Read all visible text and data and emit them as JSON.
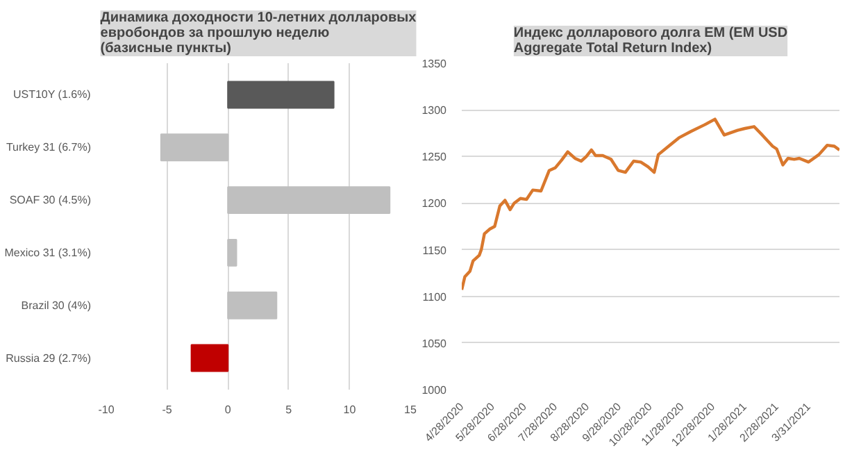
{
  "chart_data": [
    {
      "type": "bar",
      "orientation": "horizontal",
      "title": "Динамика доходности 10-летних долларовых\nевробондов за прошлую неделю\n(базисные пункты)",
      "categories": [
        "UST10Y (1.6%)",
        "Turkey 31 (6.7%)",
        "SOAF 30 (4.5%)",
        "Mexico 31 (3.1%)",
        "Brazil 30 (4%)",
        "Russia 29 (2.7%)"
      ],
      "values": [
        8.7,
        -5.5,
        13.3,
        0.7,
        4.0,
        -3.0
      ],
      "colors": [
        "#595959",
        "#bfbfbf",
        "#bfbfbf",
        "#bfbfbf",
        "#bfbfbf",
        "#c00000"
      ],
      "xlim": [
        -10,
        15
      ],
      "xticks": [
        -10,
        -5,
        0,
        5,
        10,
        15
      ],
      "grid": "x"
    },
    {
      "type": "line",
      "title": "Индекс долларового долга EM (EM USD\nAggregate Total Return Index)",
      "x": [
        "2020-04-28",
        "2020-05-01",
        "2020-05-06",
        "2020-05-09",
        "2020-05-15",
        "2020-05-17",
        "2020-05-20",
        "2020-05-25",
        "2020-05-30",
        "2020-06-04",
        "2020-06-09",
        "2020-06-14",
        "2020-06-18",
        "2020-06-24",
        "2020-06-30",
        "2020-07-06",
        "2020-07-14",
        "2020-07-22",
        "2020-07-28",
        "2020-08-03",
        "2020-08-09",
        "2020-08-16",
        "2020-08-22",
        "2020-08-27",
        "2020-09-01",
        "2020-09-05",
        "2020-09-12",
        "2020-09-20",
        "2020-09-27",
        "2020-10-04",
        "2020-10-12",
        "2020-10-19",
        "2020-10-26",
        "2020-11-01",
        "2020-11-05",
        "2020-11-15",
        "2020-11-25",
        "2020-12-07",
        "2020-12-20",
        "2020-12-30",
        "2021-01-08",
        "2021-01-21",
        "2021-01-28",
        "2021-02-06",
        "2021-02-14",
        "2021-02-24",
        "2021-02-28",
        "2021-03-06",
        "2021-03-11",
        "2021-03-17",
        "2021-03-22",
        "2021-03-31",
        "2021-04-10",
        "2021-04-18",
        "2021-04-25",
        "2021-04-30"
      ],
      "series": [
        {
          "color": "#d9782d",
          "values": [
            1107,
            1121,
            1127,
            1138,
            1144,
            1150,
            1167,
            1172,
            1175,
            1197,
            1203,
            1193,
            1200,
            1205,
            1204,
            1214,
            1213,
            1235,
            1238,
            1246,
            1255,
            1248,
            1245,
            1250,
            1257,
            1251,
            1251,
            1247,
            1235,
            1233,
            1245,
            1244,
            1239,
            1233,
            1252,
            1261,
            1270,
            1277,
            1284,
            1290,
            1273,
            1278,
            1280,
            1282,
            1273,
            1261,
            1258,
            1241,
            1248,
            1247,
            1248,
            1244,
            1252,
            1262,
            1261,
            1257
          ]
        }
      ],
      "xlim": [
        "2020-04-28",
        "2021-04-30"
      ],
      "xticks": [
        {
          "value": "2020-04-28",
          "label": "4/28/2020"
        },
        {
          "value": "2020-05-28",
          "label": "5/28/2020"
        },
        {
          "value": "2020-06-28",
          "label": "6/28/2020"
        },
        {
          "value": "2020-07-28",
          "label": "7/28/2020"
        },
        {
          "value": "2020-08-28",
          "label": "8/28/2020"
        },
        {
          "value": "2020-09-28",
          "label": "9/28/2020"
        },
        {
          "value": "2020-10-28",
          "label": "10/28/2020"
        },
        {
          "value": "2020-11-28",
          "label": "11/28/2020"
        },
        {
          "value": "2020-12-28",
          "label": "12/28/2020"
        },
        {
          "value": "2021-01-28",
          "label": "1/28/2021"
        },
        {
          "value": "2021-02-28",
          "label": "2/28/2021"
        },
        {
          "value": "2021-03-31",
          "label": "3/31/2021"
        }
      ],
      "ylim": [
        1000,
        1350
      ],
      "yticks": [
        1000,
        1050,
        1100,
        1150,
        1200,
        1250,
        1300,
        1350
      ],
      "grid": "y",
      "line_style": "solid",
      "marker": "none"
    }
  ]
}
